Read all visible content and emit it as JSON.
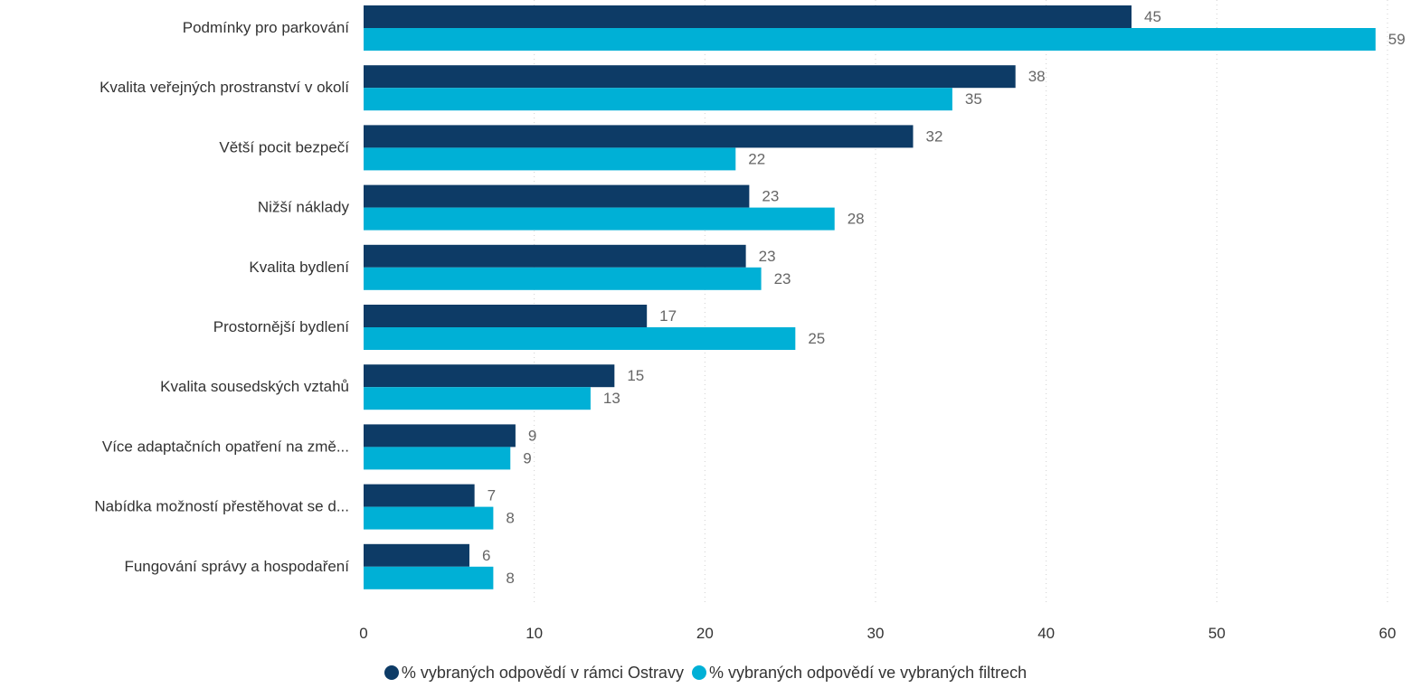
{
  "colors": {
    "series1": "#0d3b66",
    "series2": "#00b0d6",
    "grid": "#d0d0d0"
  },
  "chart_data": {
    "type": "bar",
    "orientation": "horizontal",
    "categories": [
      "Podmínky pro parkování",
      "Kvalita veřejných prostranství v okolí",
      "Větší pocit bezpečí",
      "Nižší náklady",
      "Kvalita bydlení",
      "Prostornější bydlení",
      "Kvalita sousedských vztahů",
      "Více adaptačních opatření na změ...",
      "Nabídka možností přestěhovat se d...",
      "Fungování správy a hospodaření"
    ],
    "series": [
      {
        "name": "% vybraných odpovědí v rámci Ostravy",
        "color": "#0d3b66",
        "values": [
          45,
          38,
          32,
          23,
          23,
          17,
          15,
          9,
          7,
          6
        ],
        "bar_values": [
          45,
          38.2,
          32.2,
          22.6,
          22.4,
          16.6,
          14.7,
          8.9,
          6.5,
          6.2
        ]
      },
      {
        "name": "% vybraných odpovědí ve vybraných filtrech",
        "color": "#00b0d6",
        "values": [
          59,
          35,
          22,
          28,
          23,
          25,
          13,
          9,
          8,
          8
        ],
        "bar_values": [
          59.3,
          34.5,
          21.8,
          27.6,
          23.3,
          25.3,
          13.3,
          8.6,
          7.6,
          7.6
        ]
      }
    ],
    "xticks": [
      "0",
      "10",
      "20",
      "30",
      "40",
      "50",
      "60"
    ],
    "xlim": [
      0,
      60
    ],
    "grid": true,
    "legend_position": "bottom"
  }
}
